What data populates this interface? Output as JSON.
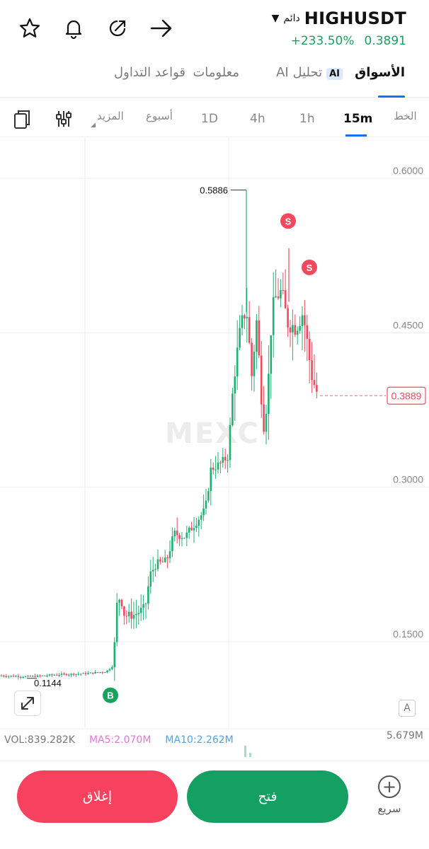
{
  "header": {
    "pair": "HIGHUSDT",
    "contract_type": "دائم",
    "caret": "▼",
    "change_pct": "+233.50%",
    "last_price": "0.3891",
    "icons": [
      "star-icon",
      "bell-icon",
      "share-icon",
      "arrow-right-icon"
    ]
  },
  "tabs": [
    {
      "label": "الأسواق",
      "active": true
    },
    {
      "label": "تحليل AI",
      "badge": "AI",
      "active": false
    },
    {
      "label": "معلومات",
      "active": false
    },
    {
      "label": "قواعد التداول",
      "active": false
    }
  ],
  "timeframes": {
    "line": "الخط",
    "items": [
      "15m",
      "1h",
      "4h",
      "1D",
      "أسبوع",
      "المزيد"
    ],
    "active": "15m",
    "icons": [
      "indicators-icon",
      "copy-layout-icon"
    ]
  },
  "chart_data": {
    "type": "candlestick",
    "y_ticks": [
      "0.6000",
      "0.4500",
      "0.3000",
      "0.1500"
    ],
    "ylim": [
      0.0,
      0.66
    ],
    "high_label": "0.5886",
    "low_label": "0.1144",
    "current_price_label": "0.3889",
    "current_price": 0.3889,
    "watermark": "MEXC",
    "markers": [
      {
        "label": "B"
      },
      {
        "label": "S"
      },
      {
        "label": "S"
      }
    ],
    "colors": {
      "up": "#1fb174",
      "down": "#f3495f",
      "grid": "#eeeeee"
    }
  },
  "indicators": {
    "vol": "VOL:839.282K",
    "ma5": "MA5:2.070M",
    "ma10": "MA10:2.262M",
    "vol_max": "5.679M",
    "auto_label": "A"
  },
  "actions": {
    "close": "إغلاق",
    "open": "فتح",
    "quick": "سريع"
  }
}
